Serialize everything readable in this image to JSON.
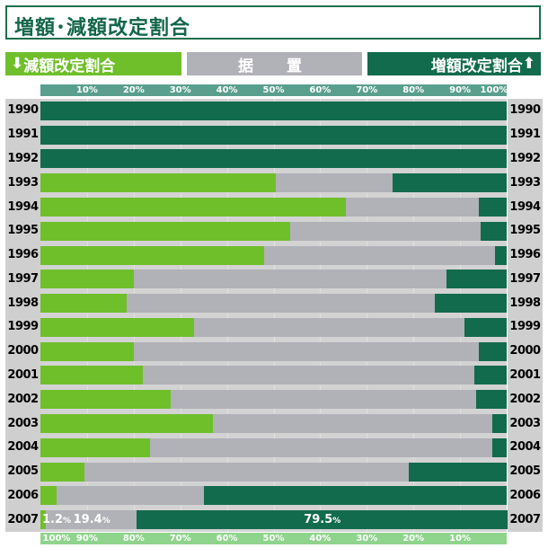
{
  "title": "増額･減額改定割合",
  "legend": {
    "decrease": "減額改定割合",
    "hold": "据　置",
    "increase": "増額改定割合",
    "decrease_arrow": "⬇",
    "increase_arrow": "⬆"
  },
  "colors": {
    "decrease": "#6fbf2b",
    "hold": "#b1b1b8",
    "increase": "#126b4c"
  },
  "chart_data": {
    "type": "bar",
    "orientation": "horizontal-stacked-100",
    "categories": [
      "1990",
      "1991",
      "1992",
      "1993",
      "1994",
      "1995",
      "1996",
      "1997",
      "1998",
      "1999",
      "2000",
      "2001",
      "2002",
      "2003",
      "2004",
      "2005",
      "2006",
      "2007"
    ],
    "series": [
      {
        "name": "減額改定割合",
        "values": [
          0,
          0,
          0,
          50.5,
          65.5,
          53.5,
          48,
          20,
          18.5,
          33,
          20,
          22,
          28,
          37,
          23.5,
          9.5,
          3.5,
          1.2
        ]
      },
      {
        "name": "据　置",
        "values": [
          0,
          0,
          0,
          25,
          28.5,
          41,
          49.5,
          67,
          66,
          58,
          74,
          71,
          65.5,
          60,
          73.5,
          69.5,
          31.5,
          19.4
        ]
      },
      {
        "name": "増額改定割合",
        "values": [
          100,
          100,
          100,
          24.5,
          6,
          5.5,
          2.5,
          13,
          15.5,
          9,
          6,
          7,
          6.5,
          3,
          3,
          21,
          65,
          79.5
        ]
      }
    ],
    "top_ticks": [
      "10%",
      "20%",
      "30%",
      "40%",
      "50%",
      "60%",
      "70%",
      "80%",
      "90%",
      "100%"
    ],
    "bottom_ticks": [
      "100%",
      "90%",
      "80%",
      "70%",
      "60%",
      "50%",
      "40%",
      "30%",
      "20%",
      "10%"
    ],
    "annotations_2007": {
      "decrease": "1.2",
      "hold": "19.4",
      "increase": "79.5",
      "unit": "%"
    },
    "xlim": [
      0,
      100
    ]
  }
}
